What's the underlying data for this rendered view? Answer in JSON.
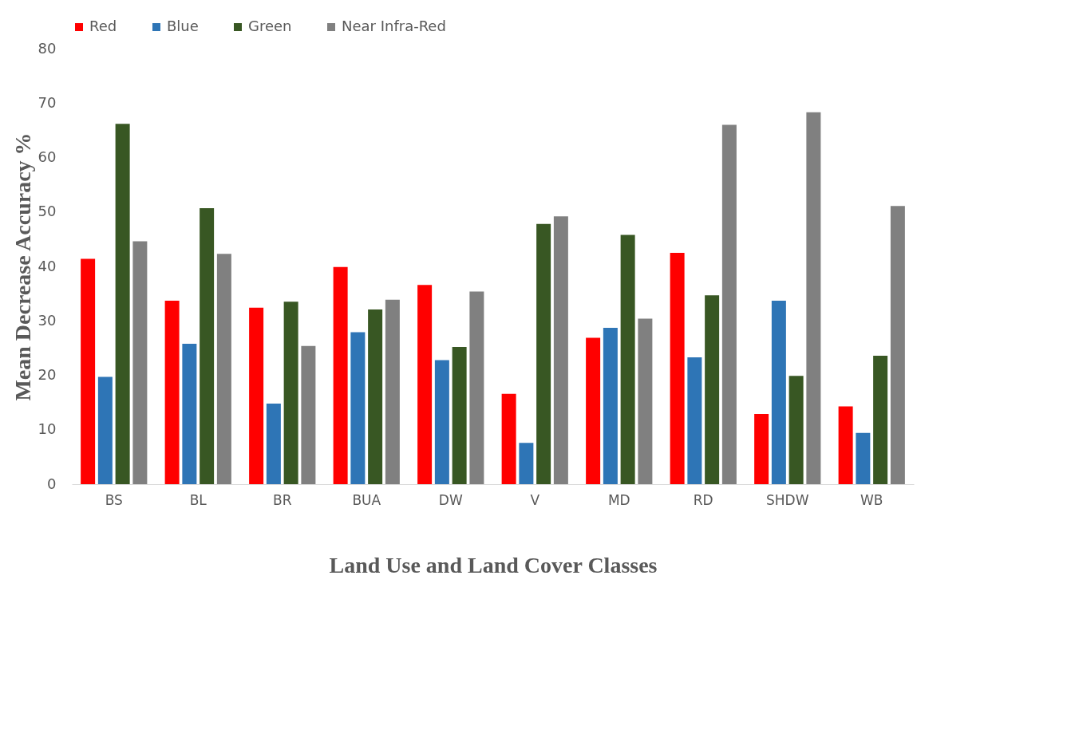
{
  "chart_data": {
    "type": "bar",
    "xlabel": "Land Use and Land Cover Classes",
    "ylabel": "Mean Decrease Accuracy %",
    "categories": [
      "BS",
      "BL",
      "BR",
      "BUA",
      "DW",
      "V",
      "MD",
      "RD",
      "SHDW",
      "WB"
    ],
    "series": [
      {
        "name": "Red",
        "color": "#ff0000",
        "values": [
          41.4,
          33.7,
          32.4,
          39.9,
          36.6,
          16.6,
          26.9,
          42.5,
          12.9,
          14.3
        ]
      },
      {
        "name": "Blue",
        "color": "#2e75b6",
        "values": [
          19.7,
          25.8,
          14.8,
          27.9,
          22.8,
          7.6,
          28.7,
          23.3,
          33.7,
          9.4
        ]
      },
      {
        "name": "Green",
        "color": "#385723",
        "values": [
          66.2,
          50.7,
          33.5,
          32.1,
          25.2,
          47.8,
          45.8,
          34.7,
          19.9,
          23.6
        ]
      },
      {
        "name": "Near Infra-Red",
        "color": "#808080",
        "values": [
          44.6,
          42.3,
          25.4,
          33.9,
          35.4,
          49.2,
          30.4,
          66.0,
          68.3,
          51.1
        ]
      }
    ],
    "ylim": [
      0,
      80
    ],
    "yticks": [
      0,
      10,
      20,
      30,
      40,
      50,
      60,
      70,
      80
    ],
    "grid": false,
    "legend": "top"
  }
}
